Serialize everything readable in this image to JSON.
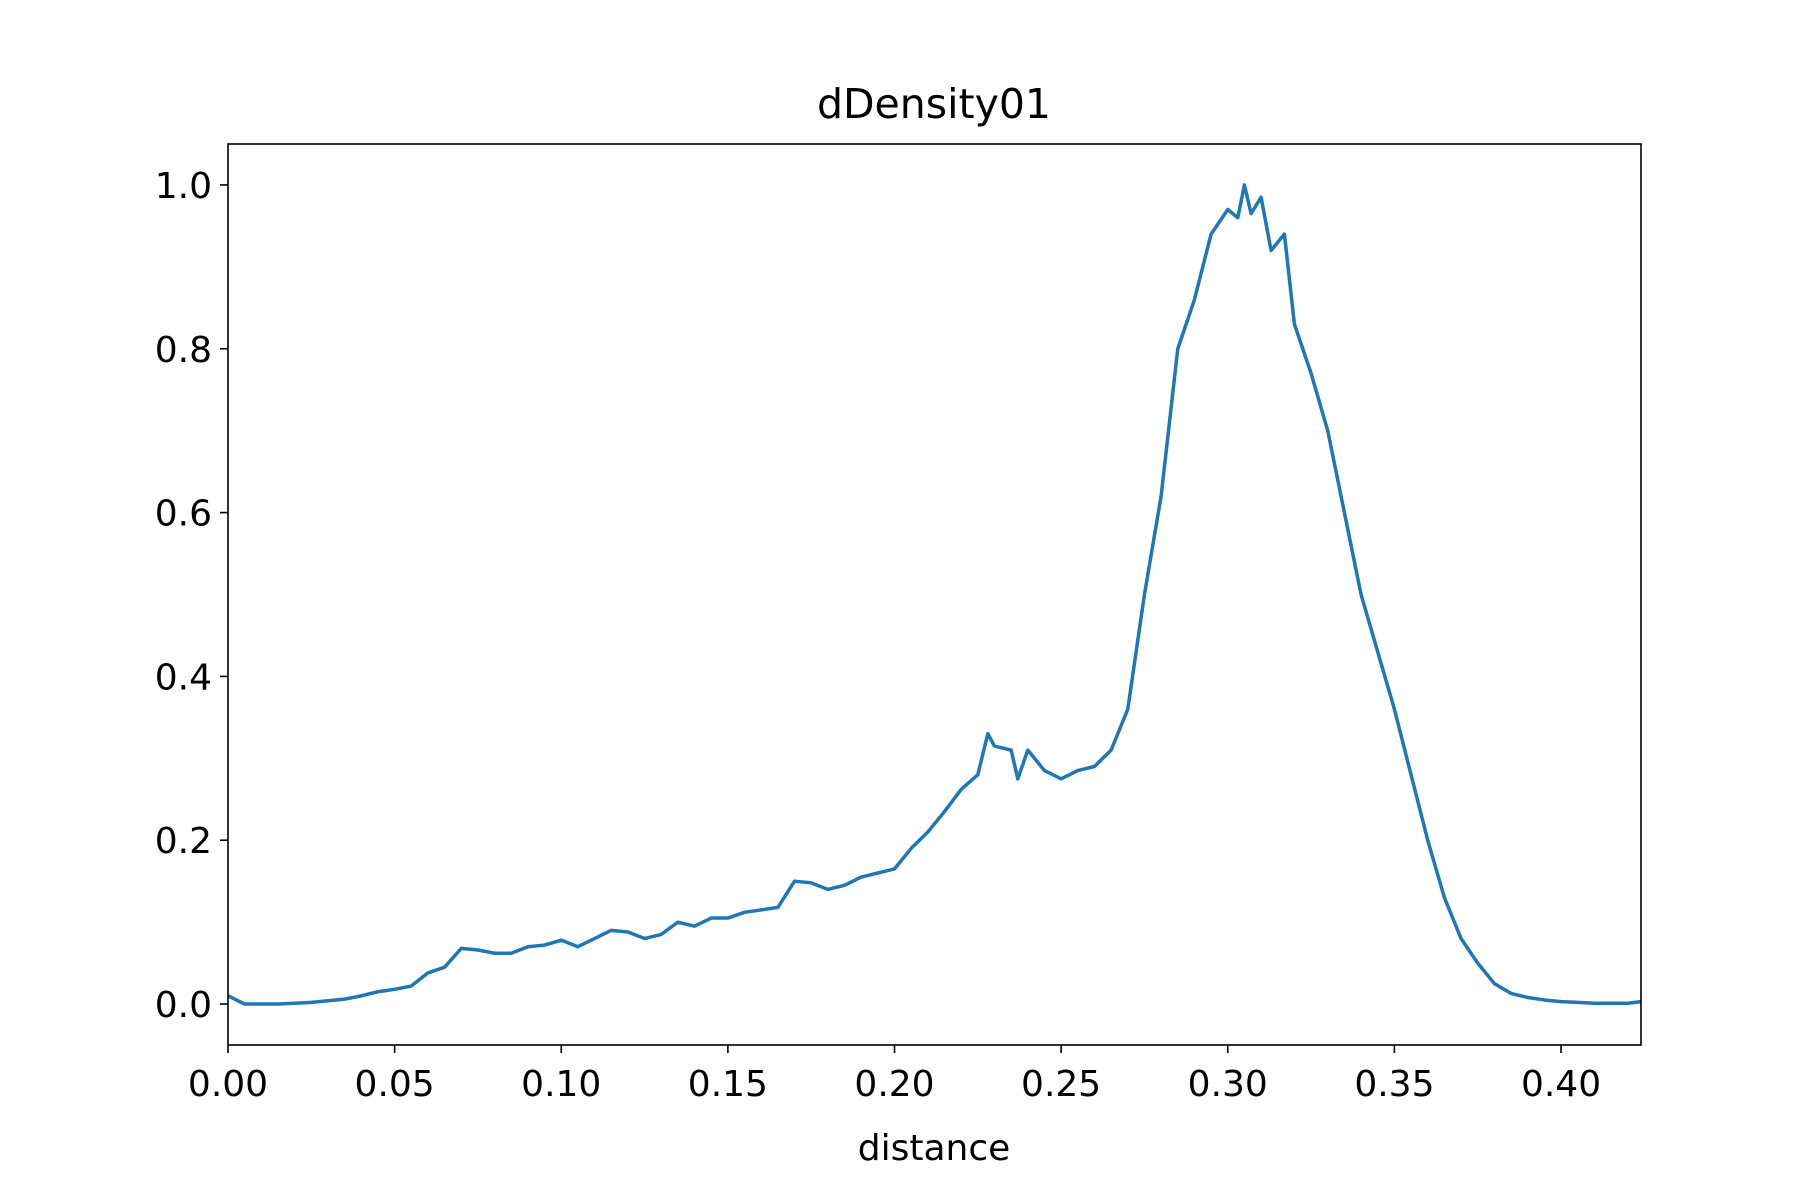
{
  "chart_data": {
    "type": "line",
    "title": "dDensity01",
    "x_label": "distance",
    "x": [
      0,
      0.005,
      0.01,
      0.015,
      0.02,
      0.025,
      0.03,
      0.035,
      0.04,
      0.045,
      0.05,
      0.055,
      0.06,
      0.065,
      0.07,
      0.075,
      0.08,
      0.085,
      0.09,
      0.095,
      0.1,
      0.105,
      0.11,
      0.115,
      0.12,
      0.125,
      0.13,
      0.135,
      0.14,
      0.145,
      0.15,
      0.155,
      0.16,
      0.165,
      0.17,
      0.175,
      0.18,
      0.185,
      0.19,
      0.195,
      0.2,
      0.205,
      0.21,
      0.215,
      0.22,
      0.225,
      0.228,
      0.23,
      0.235,
      0.237,
      0.24,
      0.245,
      0.25,
      0.255,
      0.26,
      0.265,
      0.27,
      0.275,
      0.28,
      0.285,
      0.29,
      0.295,
      0.3,
      0.303,
      0.305,
      0.307,
      0.31,
      0.313,
      0.315,
      0.317,
      0.32,
      0.325,
      0.33,
      0.335,
      0.34,
      0.345,
      0.35,
      0.355,
      0.36,
      0.365,
      0.37,
      0.375,
      0.38,
      0.385,
      0.39,
      0.395,
      0.4,
      0.405,
      0.41,
      0.415,
      0.42,
      0.424
    ],
    "series": [
      {
        "color": "#1f77b4",
        "values": [
          0.01,
          0.0,
          0.0,
          0.0,
          0.001,
          0.002,
          0.004,
          0.006,
          0.01,
          0.015,
          0.018,
          0.022,
          0.038,
          0.045,
          0.068,
          0.066,
          0.062,
          0.062,
          0.07,
          0.072,
          0.078,
          0.07,
          0.08,
          0.09,
          0.088,
          0.08,
          0.085,
          0.1,
          0.095,
          0.105,
          0.105,
          0.112,
          0.115,
          0.118,
          0.15,
          0.148,
          0.14,
          0.145,
          0.155,
          0.16,
          0.165,
          0.19,
          0.21,
          0.235,
          0.262,
          0.28,
          0.33,
          0.315,
          0.31,
          0.275,
          0.31,
          0.285,
          0.275,
          0.285,
          0.29,
          0.31,
          0.36,
          0.5,
          0.62,
          0.8,
          0.86,
          0.94,
          0.97,
          0.96,
          1.0,
          0.965,
          0.985,
          0.92,
          0.93,
          0.94,
          0.83,
          0.77,
          0.7,
          0.6,
          0.5,
          0.43,
          0.36,
          0.28,
          0.2,
          0.13,
          0.08,
          0.05,
          0.025,
          0.013,
          0.008,
          0.005,
          0.003,
          0.002,
          0.001,
          0.001,
          0.001,
          0.003
        ]
      }
    ],
    "xlim": [
      0,
      0.424
    ],
    "ylim": [
      -0.05,
      1.05
    ],
    "xticks": [
      {
        "value": 0,
        "label": "0.00"
      },
      0.05,
      {
        "value": 0.1,
        "label": "0.10"
      },
      0.15,
      {
        "value": 0.2,
        "label": "0.20"
      },
      0.25,
      {
        "value": 0.3,
        "label": "0.30"
      },
      0.35,
      {
        "value": 0.4,
        "label": "0.40"
      }
    ],
    "yticks": [
      {
        "value": 0,
        "label": "0.0"
      },
      0.2,
      0.4,
      0.6,
      0.8,
      {
        "value": 1,
        "label": "1.0"
      }
    ]
  }
}
